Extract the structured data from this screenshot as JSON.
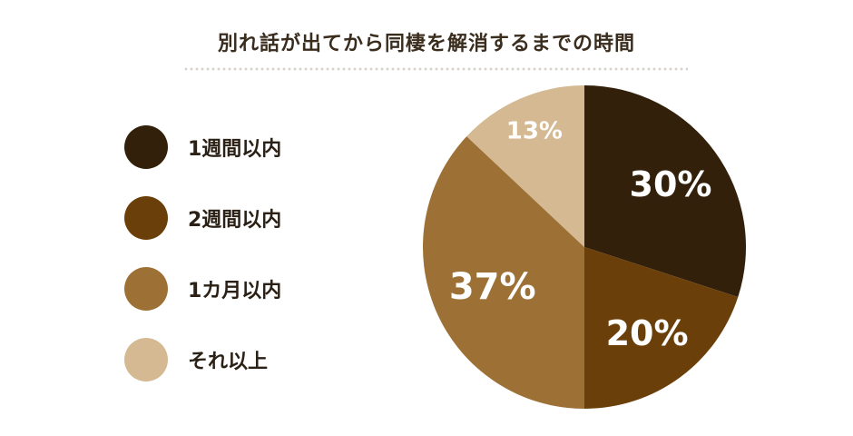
{
  "chart_data": {
    "type": "pie",
    "title": "別れ話が出てから同棲を解消するまでの時間",
    "slices": [
      {
        "label": "1週間以内",
        "value": 30,
        "display": "30%",
        "color": "#33200b"
      },
      {
        "label": "2週間以内",
        "value": 20,
        "display": "20%",
        "color": "#6b3f0a"
      },
      {
        "label": "1カ月以内",
        "value": 37,
        "display": "37%",
        "color": "#9d7135"
      },
      {
        "label": "それ以上",
        "value": 13,
        "display": "13%",
        "color": "#d4b992"
      }
    ],
    "legend_position": "left"
  }
}
